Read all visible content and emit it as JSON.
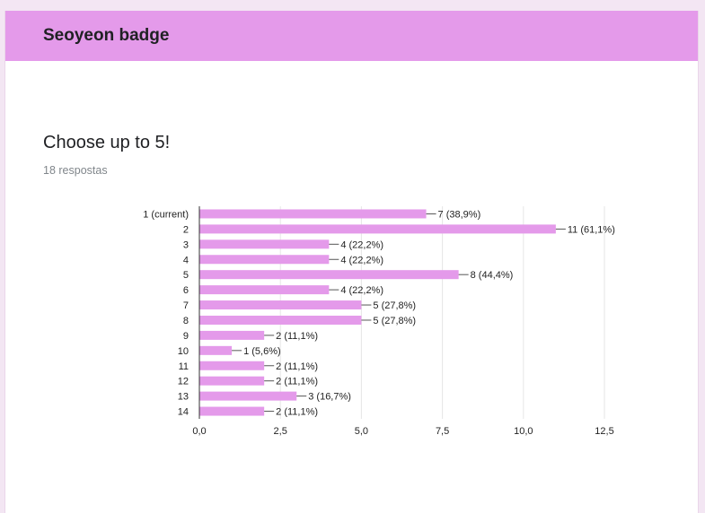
{
  "header": {
    "title": "Seoyeon badge"
  },
  "question": {
    "title": "Choose up to 5!",
    "responses": "18 respostas"
  },
  "colors": {
    "accent": "#e49aea",
    "bar": "#e49aea"
  },
  "chart_data": {
    "type": "bar",
    "orientation": "horizontal",
    "categories": [
      "1 (current)",
      "2",
      "3",
      "4",
      "5",
      "6",
      "7",
      "8",
      "9",
      "10",
      "11",
      "12",
      "13",
      "14"
    ],
    "values": [
      7,
      11,
      4,
      4,
      8,
      4,
      5,
      5,
      2,
      1,
      2,
      2,
      3,
      2
    ],
    "data_labels": [
      "7 (38,9%)",
      "11 (61,1%)",
      "4 (22,2%)",
      "4 (22,2%)",
      "8 (44,4%)",
      "4 (22,2%)",
      "5 (27,8%)",
      "5 (27,8%)",
      "2 (11,1%)",
      "1 (5,6%)",
      "2 (11,1%)",
      "2 (11,1%)",
      "3 (16,7%)",
      "2 (11,1%)"
    ],
    "xlim": [
      0,
      12.5
    ],
    "xticks": [
      0,
      2.5,
      5,
      7.5,
      10,
      12.5
    ],
    "xtick_labels": [
      "0,0",
      "2,5",
      "5,0",
      "7,5",
      "10,0",
      "12,5"
    ],
    "grid": true,
    "legend": false
  }
}
